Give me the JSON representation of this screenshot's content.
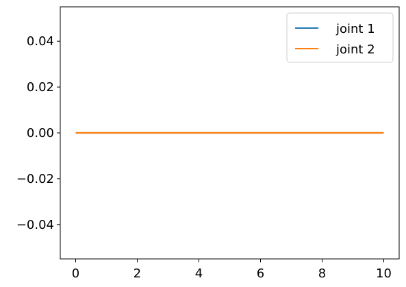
{
  "chart_data": {
    "type": "line",
    "title": "",
    "xlabel": "",
    "ylabel": "",
    "xlim": [
      -0.5,
      10.5
    ],
    "ylim": [
      -0.055,
      0.055
    ],
    "xticks": [
      0,
      2,
      4,
      6,
      8,
      10
    ],
    "xtick_labels": [
      "0",
      "2",
      "4",
      "6",
      "8",
      "10"
    ],
    "yticks": [
      -0.04,
      -0.02,
      0.0,
      0.02,
      0.04
    ],
    "ytick_labels": [
      "−0.04",
      "−0.02",
      "0.00",
      "0.02",
      "0.04"
    ],
    "grid": false,
    "legend_position": "top-right",
    "series": [
      {
        "name": "joint 1",
        "color": "#1f77b4",
        "x": [
          0,
          10
        ],
        "y": [
          0,
          0
        ]
      },
      {
        "name": "joint 2",
        "color": "#ff7f0e",
        "x": [
          0,
          10
        ],
        "y": [
          0,
          0
        ]
      }
    ]
  }
}
